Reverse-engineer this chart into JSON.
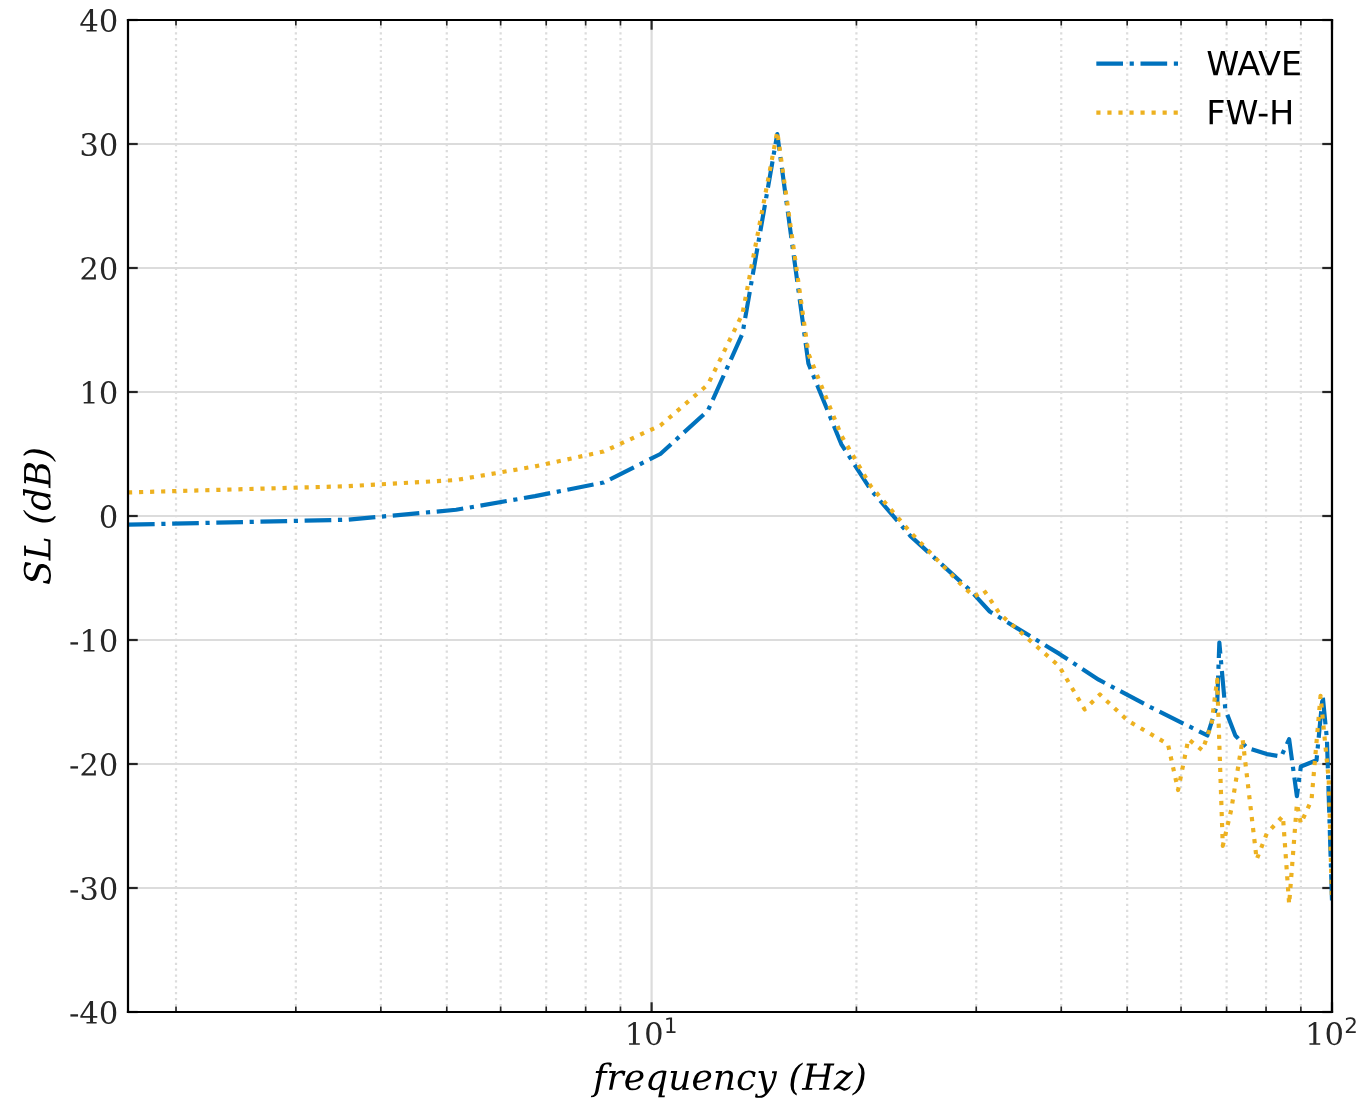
{
  "chart_data": {
    "type": "line",
    "xlabel": "frequency (Hz)",
    "ylabel": "SL (dB)",
    "log": "x",
    "grid": true,
    "legend": "top right",
    "xlim": [
      1.7,
      100
    ],
    "xticks": [
      {
        "value": 10,
        "label": "10$^{1}$"
      },
      {
        "value": 100,
        "label": "10$^{2}$"
      }
    ],
    "ylim": [
      -40,
      40
    ],
    "yticks": [
      -40,
      -30,
      -20,
      -10,
      0,
      10,
      20,
      30,
      40
    ],
    "series": [
      {
        "name": "WAVE",
        "color": "#0072bd",
        "line_style": "dashdot",
        "x": [
          1.7,
          3.57,
          5.16,
          6.74,
          8.5,
          10.3,
          12.1,
          13.6,
          15.3,
          17.0,
          19.0,
          21.0,
          24.0,
          29.4,
          31.4,
          39.7,
          45.4,
          53.6,
          65.6,
          67.8,
          68.3,
          69.7,
          72.1,
          75,
          80.2,
          84.2,
          86.5,
          88.8,
          90,
          94.9,
          96.9,
          98.3,
          100
        ],
        "values": [
          -0.7,
          -0.3,
          0.5,
          1.6,
          2.7,
          5.0,
          8.5,
          14.7,
          30.8,
          12.3,
          5.8,
          2.1,
          -1.6,
          -6,
          -7.7,
          -11.1,
          -13.2,
          -15.3,
          -17.7,
          -15.2,
          -10.2,
          -15.6,
          -17.7,
          -18.7,
          -19.2,
          -19.4,
          -18,
          -22.6,
          -20.2,
          -19.7,
          -14.5,
          -18,
          -31
        ]
      },
      {
        "name": "FW-H",
        "color": "#edb120",
        "line_style": "dotted",
        "x": [
          1.7,
          3.57,
          5.16,
          6.74,
          8.5,
          10.3,
          12.1,
          13.6,
          15.3,
          17.0,
          19.0,
          21.0,
          24.0,
          28.6,
          29.8,
          30.8,
          32.5,
          39.7,
          43.3,
          45.6,
          50.1,
          57.4,
          59.4,
          61.5,
          64.5,
          66.5,
          67.8,
          69.1,
          71.1,
          73.9,
          77.5,
          80.2,
          84.7,
          86.5,
          88.8,
          90,
          93.3,
          96.2,
          98.9,
          100
        ],
        "values": [
          1.9,
          2.4,
          2.9,
          4.0,
          5.2,
          7.3,
          10.6,
          16.3,
          31,
          13.1,
          6.5,
          2.4,
          -1.3,
          -5.6,
          -6.5,
          -6,
          -7.9,
          -12.1,
          -15.6,
          -14.4,
          -16.5,
          -18.4,
          -22.1,
          -18,
          -18.9,
          -16.8,
          -13.2,
          -26.6,
          -23.7,
          -18,
          -27.7,
          -25.6,
          -24.2,
          -31.3,
          -23.2,
          -24.8,
          -22.9,
          -14.5,
          -21.3,
          -31
        ]
      }
    ]
  }
}
